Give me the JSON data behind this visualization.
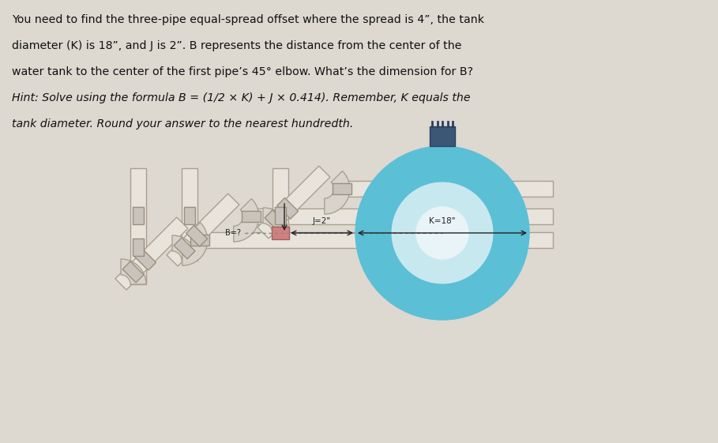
{
  "background_color": "#ddd8d0",
  "text_color": "#111111",
  "title_lines_normal": [
    "You need to find the three-pipe equal-spread offset where the spread is 4”, the tank",
    "diameter (K) is 18”, and J is 2”. B represents the distance from the center of the",
    "water tank to the center of the first pipe’s 45° elbow. What’s the dimension for B?"
  ],
  "title_lines_italic": [
    "Hint: Solve using the formula B = (1/2 × K) + J × 0.414). Remember, K equals the",
    "tank diameter. Round your answer to the nearest hundredth."
  ],
  "tank_color": "#5bbfd6",
  "tank_ring_color": "#c8e8f0",
  "tank_hole_color": "#e8f4f8",
  "tank_top_color": "#3a5875",
  "pipe_fill": "#e8e4dc",
  "pipe_edge": "#aaa090",
  "elbow_fill": "#d8d4cc",
  "elbow_edge": "#aaa090",
  "coupling_fill": "#c8c4bc",
  "coupling_edge": "#999080",
  "label_J": "J=2\"",
  "label_K": "K=18\"",
  "label_B": "B=?",
  "arrow_color": "#222222",
  "dotted_color": "#888888"
}
